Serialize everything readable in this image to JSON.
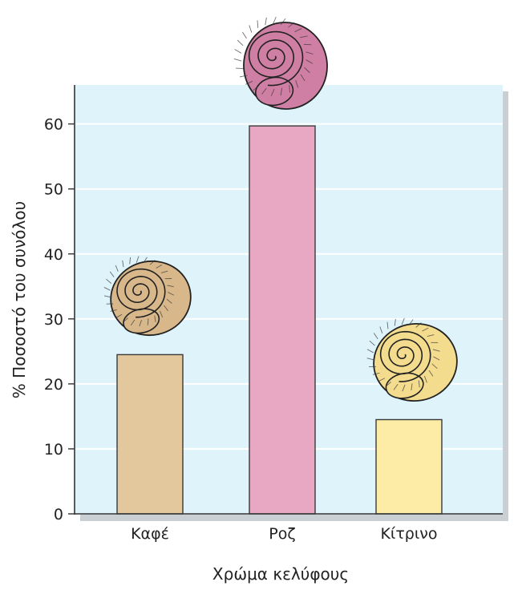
{
  "chart_data": {
    "type": "bar",
    "categories": [
      "Καφέ",
      "Ροζ",
      "Κίτρινο"
    ],
    "values": [
      24.5,
      59.7,
      14.5
    ],
    "xlabel": "Χρώμα κελύφους",
    "ylabel": "% Ποσοστό του συνόλου",
    "ylim": [
      0,
      66
    ],
    "yticks": [
      0,
      10,
      20,
      30,
      40,
      50,
      60
    ],
    "grid": true,
    "bar_colors": [
      "#e3c89d",
      "#e8a8c4",
      "#fdeca6"
    ],
    "snail_colors": [
      "#d8b88b",
      "#cf7fa3",
      "#f3dc8e"
    ],
    "plot_background": "#dff3fb",
    "gridline_color": "#ffffff",
    "snail_icons": [
      "brown-snail-shell-icon",
      "pink-snail-shell-icon",
      "yellow-snail-shell-icon"
    ]
  }
}
